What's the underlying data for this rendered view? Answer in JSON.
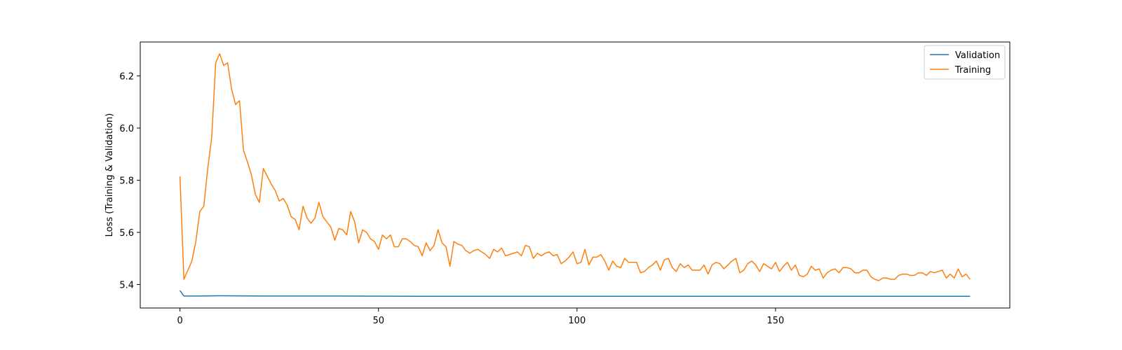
{
  "chart_data": {
    "type": "line",
    "title": "",
    "xlabel": "",
    "ylabel": "Loss (Training & Validation)",
    "xlim": [
      -10,
      209
    ],
    "ylim": [
      5.31,
      6.33
    ],
    "xticks": [
      0,
      50,
      100,
      150
    ],
    "xtick_labels": [
      "0",
      "50",
      "100",
      "150"
    ],
    "yticks": [
      5.4,
      5.6,
      5.8,
      6.0,
      6.2
    ],
    "ytick_labels": [
      "5.4",
      "5.6",
      "5.8",
      "6.0",
      "6.2"
    ],
    "grid": false,
    "legend_position": "top-right",
    "series": [
      {
        "name": "Validation",
        "color": "#1f77b4",
        "x": [
          0,
          1,
          2,
          3,
          5,
          10,
          20,
          40,
          60,
          80,
          100,
          120,
          140,
          160,
          180,
          199
        ],
        "values": [
          5.377,
          5.356,
          5.356,
          5.356,
          5.356,
          5.357,
          5.356,
          5.356,
          5.355,
          5.355,
          5.355,
          5.355,
          5.355,
          5.355,
          5.355,
          5.355
        ]
      },
      {
        "name": "Training",
        "color": "#ff7f0e",
        "x": [
          0,
          1,
          2,
          3,
          4,
          5,
          6,
          7,
          8,
          9,
          10,
          11,
          12,
          13,
          14,
          15,
          16,
          17,
          18,
          19,
          20,
          21,
          22,
          23,
          24,
          25,
          26,
          27,
          28,
          29,
          30,
          31,
          32,
          33,
          34,
          35,
          36,
          37,
          38,
          39,
          40,
          41,
          42,
          43,
          44,
          45,
          46,
          47,
          48,
          49,
          50,
          51,
          52,
          53,
          54,
          55,
          56,
          57,
          58,
          59,
          60,
          61,
          62,
          63,
          64,
          65,
          66,
          67,
          68,
          69,
          70,
          71,
          72,
          73,
          74,
          75,
          76,
          77,
          78,
          79,
          80,
          81,
          82,
          83,
          84,
          85,
          86,
          87,
          88,
          89,
          90,
          91,
          92,
          93,
          94,
          95,
          96,
          97,
          98,
          99,
          100,
          101,
          102,
          103,
          104,
          105,
          106,
          107,
          108,
          109,
          110,
          111,
          112,
          113,
          114,
          115,
          116,
          117,
          118,
          119,
          120,
          121,
          122,
          123,
          124,
          125,
          126,
          127,
          128,
          129,
          130,
          131,
          132,
          133,
          134,
          135,
          136,
          137,
          138,
          139,
          140,
          141,
          142,
          143,
          144,
          145,
          146,
          147,
          148,
          149,
          150,
          151,
          152,
          153,
          154,
          155,
          156,
          157,
          158,
          159,
          160,
          161,
          162,
          163,
          164,
          165,
          166,
          167,
          168,
          169,
          170,
          171,
          172,
          173,
          174,
          175,
          176,
          177,
          178,
          179,
          180,
          181,
          182,
          183,
          184,
          185,
          186,
          187,
          188,
          189,
          190,
          191,
          192,
          193,
          194,
          195,
          196,
          197,
          198,
          199
        ],
        "values": [
          5.815,
          5.42,
          5.455,
          5.49,
          5.565,
          5.68,
          5.7,
          5.845,
          5.965,
          6.25,
          6.285,
          6.24,
          6.25,
          6.15,
          6.09,
          6.105,
          5.915,
          5.87,
          5.82,
          5.745,
          5.715,
          5.845,
          5.815,
          5.785,
          5.76,
          5.72,
          5.73,
          5.705,
          5.66,
          5.65,
          5.61,
          5.7,
          5.655,
          5.635,
          5.655,
          5.715,
          5.66,
          5.64,
          5.62,
          5.57,
          5.615,
          5.61,
          5.59,
          5.68,
          5.64,
          5.56,
          5.61,
          5.6,
          5.575,
          5.565,
          5.535,
          5.59,
          5.575,
          5.59,
          5.545,
          5.545,
          5.575,
          5.575,
          5.565,
          5.55,
          5.545,
          5.51,
          5.56,
          5.53,
          5.55,
          5.61,
          5.56,
          5.545,
          5.47,
          5.565,
          5.555,
          5.55,
          5.53,
          5.52,
          5.53,
          5.535,
          5.525,
          5.515,
          5.5,
          5.535,
          5.525,
          5.54,
          5.51,
          5.515,
          5.52,
          5.525,
          5.51,
          5.55,
          5.545,
          5.5,
          5.52,
          5.51,
          5.52,
          5.525,
          5.51,
          5.515,
          5.48,
          5.49,
          5.505,
          5.525,
          5.48,
          5.485,
          5.535,
          5.475,
          5.505,
          5.505,
          5.515,
          5.49,
          5.455,
          5.49,
          5.47,
          5.465,
          5.5,
          5.485,
          5.485,
          5.485,
          5.445,
          5.45,
          5.465,
          5.475,
          5.49,
          5.455,
          5.495,
          5.5,
          5.465,
          5.45,
          5.48,
          5.465,
          5.475,
          5.455,
          5.455,
          5.455,
          5.475,
          5.44,
          5.475,
          5.485,
          5.48,
          5.46,
          5.475,
          5.49,
          5.5,
          5.445,
          5.455,
          5.48,
          5.49,
          5.475,
          5.45,
          5.48,
          5.47,
          5.46,
          5.485,
          5.45,
          5.47,
          5.485,
          5.455,
          5.475,
          5.435,
          5.43,
          5.44,
          5.47,
          5.455,
          5.46,
          5.425,
          5.445,
          5.455,
          5.46,
          5.445,
          5.465,
          5.465,
          5.46,
          5.445,
          5.445,
          5.455,
          5.455,
          5.43,
          5.42,
          5.415,
          5.425,
          5.425,
          5.42,
          5.42,
          5.435,
          5.44,
          5.44,
          5.435,
          5.435,
          5.445,
          5.445,
          5.435,
          5.45,
          5.445,
          5.45,
          5.455,
          5.425,
          5.44,
          5.425,
          5.46,
          5.43,
          5.44,
          5.42
        ]
      }
    ]
  }
}
